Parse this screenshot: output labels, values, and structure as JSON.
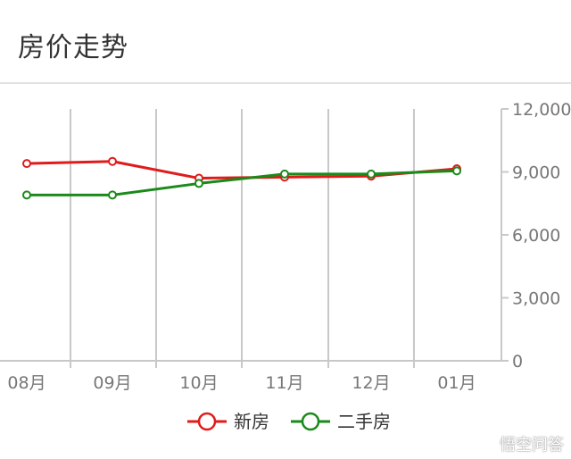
{
  "header": {
    "title": "房价走势"
  },
  "watermark": "悟空问答",
  "chart_data": {
    "type": "line",
    "categories": [
      "08月",
      "09月",
      "10月",
      "11月",
      "12月",
      "01月"
    ],
    "series": [
      {
        "name": "新房",
        "color": "#e01b1b",
        "values": [
          9400,
          9500,
          8700,
          8750,
          8800,
          9150
        ]
      },
      {
        "name": "二手房",
        "color": "#1a8a1a",
        "values": [
          7900,
          7900,
          8450,
          8900,
          8900,
          9050
        ]
      }
    ],
    "y_axis": {
      "position": "right",
      "ticks": [
        0,
        3000,
        6000,
        9000,
        12000
      ],
      "tick_labels": [
        "0",
        "3,000",
        "6,000",
        "9,000",
        "12,000"
      ],
      "ylim": [
        0,
        12000
      ]
    },
    "grid": "vertical",
    "legend": "bottom"
  }
}
